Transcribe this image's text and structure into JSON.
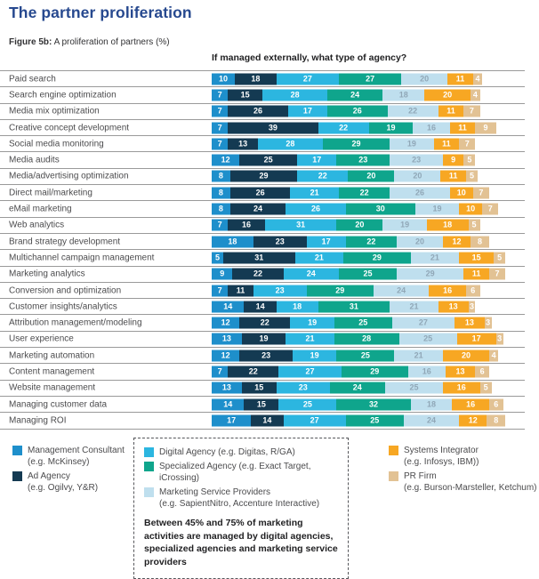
{
  "page": {
    "title": "The partner proliferation"
  },
  "figure": {
    "label": "Figure 5b:",
    "caption": "A proliferation of partners (%)"
  },
  "chart_header": "If managed externally, what type of agency?",
  "chart_data": {
    "type": "bar",
    "stacked": true,
    "orientation": "horizontal",
    "unit": "%",
    "title": "Figure 5b: A proliferation of partners (%)",
    "question": "If managed externally, what type of agency?",
    "series": [
      {
        "name": "Management Consultant",
        "example": "(e.g. McKinsey)",
        "color": "#1e8fcb",
        "value_text_color": "#ffffff"
      },
      {
        "name": "Ad Agency",
        "example": "(e.g. Ogilvy, Y&R)",
        "color": "#143a52",
        "value_text_color": "#ffffff"
      },
      {
        "name": "Digital Agency",
        "example": "(e.g. Digitas, R/GA)",
        "color": "#2cb6e0",
        "value_text_color": "#ffffff"
      },
      {
        "name": "Specialized Agency",
        "example": "(e.g. Exact Target, iCrossing)",
        "color": "#0fa58c",
        "value_text_color": "#ffffff"
      },
      {
        "name": "Marketing Service Providers",
        "example": "(e.g. SapientNitro, Accenture Interactive)",
        "color": "#bfdfee",
        "value_text_color": "#90a7b7"
      },
      {
        "name": "Systems Integrator",
        "example": "(e.g. Infosys, IBM))",
        "color": "#f7a723",
        "value_text_color": "#ffffff"
      },
      {
        "name": "PR Firm",
        "example": "(e.g. Burson-Marsteller, Ketchum)",
        "color": "#e2c294",
        "value_text_color": "#ffffff"
      }
    ],
    "categories": [
      "Paid search",
      "Search engine optimization",
      "Media mix optimization",
      "Creative concept development",
      "Social media monitoring",
      "Media audits",
      "Media/advertising optimization",
      "Direct mail/marketing",
      "eMail marketing",
      "Web analytics",
      "Brand strategy development",
      "Multichannel campaign management",
      "Marketing analytics",
      "Conversion and optimization",
      "Customer insights/analytics",
      "Attribution management/modeling",
      "User experience",
      "Marketing automation",
      "Content management",
      "Website management",
      "Managing customer data",
      "Managing ROI"
    ],
    "rows": [
      [
        10,
        18,
        27,
        27,
        20,
        11,
        4
      ],
      [
        7,
        15,
        28,
        24,
        18,
        20,
        4
      ],
      [
        7,
        26,
        17,
        26,
        22,
        11,
        7
      ],
      [
        7,
        39,
        22,
        19,
        16,
        11,
        9
      ],
      [
        7,
        13,
        28,
        29,
        19,
        11,
        7
      ],
      [
        12,
        25,
        17,
        23,
        23,
        9,
        5
      ],
      [
        8,
        29,
        22,
        20,
        20,
        11,
        5
      ],
      [
        8,
        26,
        21,
        22,
        26,
        10,
        7
      ],
      [
        8,
        24,
        26,
        30,
        19,
        10,
        7
      ],
      [
        7,
        16,
        31,
        20,
        19,
        18,
        5
      ],
      [
        18,
        23,
        17,
        22,
        20,
        12,
        8
      ],
      [
        5,
        31,
        21,
        29,
        21,
        15,
        5
      ],
      [
        9,
        22,
        24,
        25,
        29,
        11,
        7
      ],
      [
        7,
        11,
        23,
        29,
        24,
        16,
        6
      ],
      [
        14,
        14,
        18,
        31,
        21,
        13,
        3
      ],
      [
        12,
        22,
        19,
        25,
        27,
        13,
        3
      ],
      [
        13,
        19,
        21,
        28,
        25,
        17,
        3
      ],
      [
        12,
        23,
        19,
        25,
        21,
        20,
        4
      ],
      [
        7,
        22,
        27,
        29,
        16,
        13,
        6
      ],
      [
        13,
        15,
        23,
        24,
        25,
        16,
        5
      ],
      [
        14,
        15,
        25,
        32,
        18,
        16,
        6
      ],
      [
        17,
        14,
        27,
        25,
        24,
        12,
        8
      ]
    ]
  },
  "legend": {
    "left": {
      "items": [
        {
          "label": "Management Consultant",
          "example": "(e.g. McKinsey)",
          "color": "#1e8fcb",
          "example_on_new_line": true
        },
        {
          "label": "Ad Agency",
          "example": "(e.g. Ogilvy, Y&R)",
          "color": "#143a52",
          "example_on_new_line": true
        }
      ]
    },
    "box": {
      "items": [
        {
          "label": "Digital Agency",
          "example": "(e.g. Digitas, R/GA)",
          "color": "#2cb6e0",
          "example_on_new_line": false
        },
        {
          "label": "Specialized Agency",
          "example": "(e.g. Exact Target, iCrossing)",
          "color": "#0fa58c",
          "example_on_new_line": false
        },
        {
          "label": "Marketing Service Providers",
          "example": "(e.g. SapientNitro, Accenture Interactive)",
          "color": "#bfdfee",
          "example_on_new_line": true
        }
      ],
      "note": "Between 45% and 75% of marketing activities are managed by digital agencies, specialized agencies and marketing service providers"
    },
    "right": {
      "items": [
        {
          "label": "Systems Integrator",
          "example": "(e.g. Infosys, IBM))",
          "color": "#f7a723",
          "example_on_new_line": true
        },
        {
          "label": "PR Firm",
          "example": "(e.g. Burson-Marsteller, Ketchum)",
          "color": "#e2c294",
          "example_on_new_line": true
        }
      ]
    }
  }
}
